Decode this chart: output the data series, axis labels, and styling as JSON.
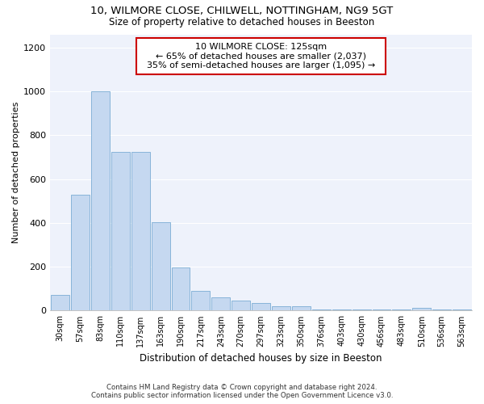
{
  "title_line1": "10, WILMORE CLOSE, CHILWELL, NOTTINGHAM, NG9 5GT",
  "title_line2": "Size of property relative to detached houses in Beeston",
  "xlabel": "Distribution of detached houses by size in Beeston",
  "ylabel": "Number of detached properties",
  "footer_line1": "Contains HM Land Registry data © Crown copyright and database right 2024.",
  "footer_line2": "Contains public sector information licensed under the Open Government Licence v3.0.",
  "categories": [
    "30sqm",
    "57sqm",
    "83sqm",
    "110sqm",
    "137sqm",
    "163sqm",
    "190sqm",
    "217sqm",
    "243sqm",
    "270sqm",
    "297sqm",
    "323sqm",
    "350sqm",
    "376sqm",
    "403sqm",
    "430sqm",
    "456sqm",
    "483sqm",
    "510sqm",
    "536sqm",
    "563sqm"
  ],
  "values": [
    70,
    530,
    1000,
    725,
    725,
    405,
    197,
    90,
    60,
    45,
    35,
    20,
    20,
    5,
    5,
    5,
    5,
    5,
    12,
    5,
    5
  ],
  "bar_color": "#c5d8f0",
  "bar_edge_color": "#7badd4",
  "annotation_label": "10 WILMORE CLOSE: 125sqm",
  "annotation_line1": "← 65% of detached houses are smaller (2,037)",
  "annotation_line2": "35% of semi-detached houses are larger (1,095) →",
  "annotation_box_facecolor": "#ffffff",
  "annotation_box_edgecolor": "#cc0000",
  "ylim": [
    0,
    1260
  ],
  "yticks": [
    0,
    200,
    400,
    600,
    800,
    1000,
    1200
  ],
  "fig_facecolor": "#ffffff",
  "ax_facecolor": "#eef2fb",
  "grid_color": "#ffffff",
  "title1_fontsize": 9.5,
  "title2_fontsize": 8.5,
  "ylabel_fontsize": 8,
  "xlabel_fontsize": 8.5,
  "tick_fontsize": 7,
  "footer_fontsize": 6.2
}
